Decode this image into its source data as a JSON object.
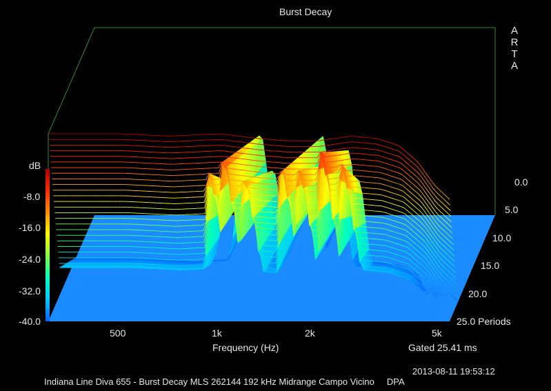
{
  "title": "Burst Decay",
  "brand_letters": [
    "A",
    "R",
    "T",
    "A"
  ],
  "colorbar": {
    "unit": "dB",
    "ticks": [
      "-8.0",
      "-16.0",
      "-24.0",
      "-32.0",
      "-40.0"
    ],
    "colors": [
      "#b00000",
      "#ff2a00",
      "#ff9000",
      "#ffff00",
      "#80ff40",
      "#00ffc0",
      "#00c8ff",
      "#0a60ff"
    ]
  },
  "x_axis": {
    "label": "Frequency (Hz)",
    "ticks": [
      "500",
      "1k",
      "2k",
      "5k"
    ],
    "tick_values_hz": [
      500,
      1000,
      2000,
      5000
    ],
    "range_hz": [
      300,
      5000
    ],
    "scale": "log"
  },
  "depth_axis": {
    "ticks": [
      "0.0",
      "5.0",
      "10.0",
      "15.0",
      "20.0",
      "25.0 Periods"
    ],
    "range": [
      0,
      25
    ]
  },
  "gated": "Gated 25.41 ms",
  "timestamp": "2013-08-11  19:53:12",
  "footer": "Indiana Line Diva 655 - Burst Decay MLS 262144 192 kHz Midrange Campo Vicino     DPA",
  "colors": {
    "background": "#000000",
    "floor": "#1a8cff",
    "frame": "#2f8f2f",
    "text": "#e6e6e6"
  },
  "chart_data": {
    "type": "waterfall",
    "title": "Burst Decay",
    "xlabel": "Frequency (Hz)",
    "ylabel": "",
    "zlabel": "dB",
    "x_scale": "log",
    "xlim_hz": [
      300,
      5000
    ],
    "zlim_db": [
      -40,
      0
    ],
    "periods_range": [
      0,
      25
    ],
    "slice_count": 100,
    "initial_response": {
      "freq_hz": [
        300,
        400,
        500,
        700,
        1000,
        1300,
        1600,
        2000,
        2500,
        3000,
        3500,
        4000,
        4500,
        5000
      ],
      "level_db": [
        0,
        0,
        0,
        -0.5,
        0,
        -1,
        -1.5,
        -1.5,
        -0.5,
        -1,
        -2.5,
        -6,
        -11,
        -14
      ]
    },
    "resonances": [
      {
        "freq_hz": 900,
        "decay_periods": 13,
        "level_db": -22
      },
      {
        "freq_hz": 1000,
        "decay_periods": 22,
        "level_db": -20
      },
      {
        "freq_hz": 1150,
        "decay_periods": 18,
        "level_db": -24
      },
      {
        "freq_hz": 1500,
        "decay_periods": 24,
        "level_db": -22
      },
      {
        "freq_hz": 1700,
        "decay_periods": 17,
        "level_db": -22
      },
      {
        "freq_hz": 2000,
        "decay_periods": 16,
        "level_db": -18
      },
      {
        "freq_hz": 2300,
        "decay_periods": 11,
        "level_db": -20
      }
    ],
    "grid": false,
    "legend": "colorbar-left"
  }
}
